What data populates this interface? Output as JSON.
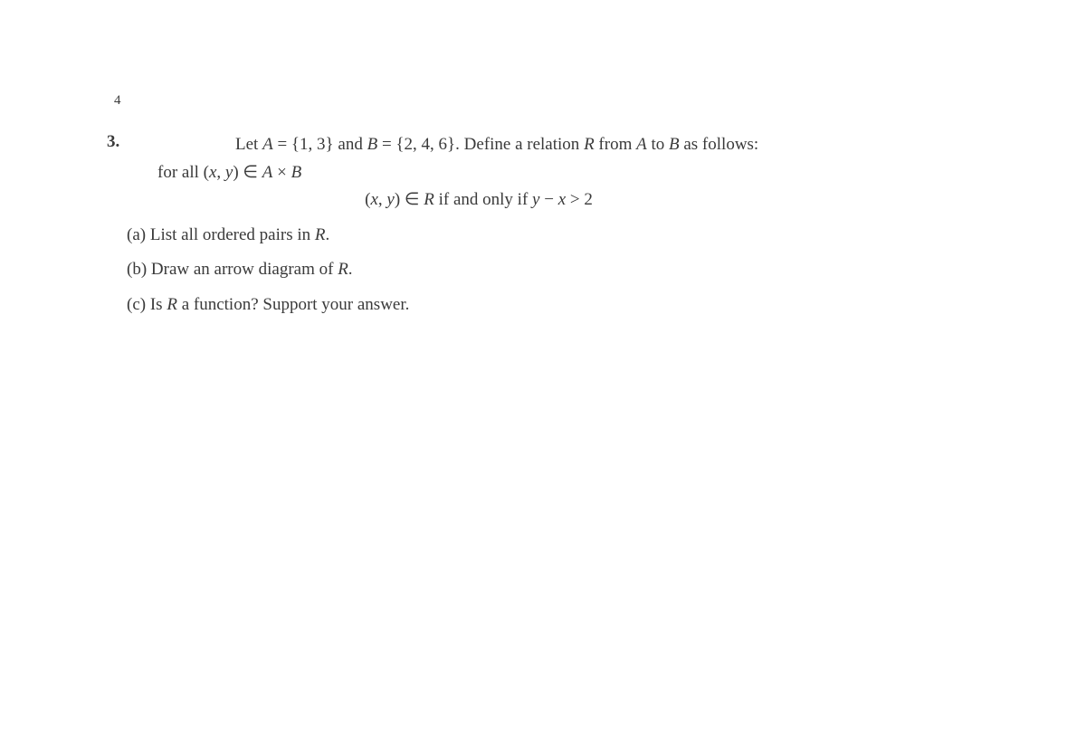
{
  "page_number": "4",
  "problem_number": "3.",
  "intro": {
    "text_before_A": "Let ",
    "A_var": "A",
    "eq1": " = {1, 3} and ",
    "B_var": "B",
    "eq2": " = {2, 4, 6}. Define a relation ",
    "R_var": "R",
    "text_mid": " from ",
    "A_var2": "A",
    "text_to": " to ",
    "B_var2": "B",
    "text_end": " as follows:"
  },
  "forall": {
    "prefix": "for all (",
    "x": "x",
    "comma": ", ",
    "y": "y",
    "paren": ") ∈ ",
    "A": "A",
    "times": " × ",
    "B": "B"
  },
  "condition": {
    "open": "(",
    "x": "x",
    "comma": ", ",
    "y": "y",
    "close_in": ") ∈ ",
    "R": "R",
    "iff": " if and only if ",
    "y2": "y",
    "minus": " − ",
    "x2": "x",
    "gt": " > 2"
  },
  "parts": {
    "a": {
      "label": "(a) ",
      "text1": "List all ordered pairs in ",
      "R": "R",
      "text2": "."
    },
    "b": {
      "label": "(b) ",
      "text1": "Draw an arrow diagram of ",
      "R": "R",
      "text2": "."
    },
    "c": {
      "label": "(c) ",
      "text1": "Is ",
      "R": "R",
      "text2": " a function? Support your answer."
    }
  },
  "styling": {
    "background_color": "#ffffff",
    "text_color": "#3a3a3a",
    "body_fontsize": 19,
    "page_num_fontsize": 15,
    "font_family": "Computer Modern / serif",
    "line_height": 1.5
  }
}
